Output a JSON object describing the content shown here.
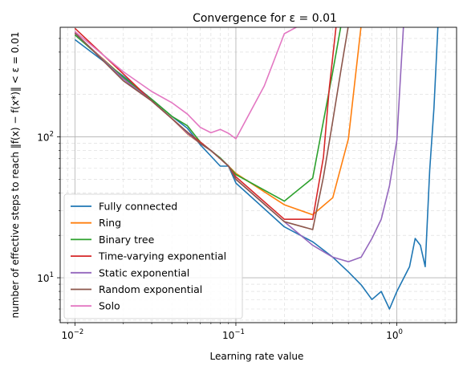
{
  "chart_data": {
    "type": "line",
    "title": "Convergence for ε =  0.01",
    "xlabel": "Learning rate value",
    "ylabel": "number of effective steps to reach ‖f(x) − f(x*)‖ < ε = 0.01",
    "xscale": "log",
    "yscale": "log",
    "xlim": [
      0.0081,
      2.35
    ],
    "ylim": [
      4.8,
      600
    ],
    "grid": true,
    "legend_position": "lower-left",
    "x_ticks": [
      {
        "value": 0.01,
        "base": "10",
        "exp": "−2"
      },
      {
        "value": 0.1,
        "base": "10",
        "exp": "−1"
      },
      {
        "value": 1,
        "base": "10",
        "exp": "0"
      }
    ],
    "y_ticks": [
      {
        "value": 10,
        "base": "10",
        "exp": "1"
      },
      {
        "value": 100,
        "base": "10",
        "exp": "2"
      }
    ],
    "series": [
      {
        "name": "Fully connected",
        "color": "#1f77b4",
        "points": [
          [
            0.01,
            490
          ],
          [
            0.02,
            270
          ],
          [
            0.03,
            185
          ],
          [
            0.04,
            140
          ],
          [
            0.05,
            115
          ],
          [
            0.06,
            88
          ],
          [
            0.07,
            73
          ],
          [
            0.08,
            62
          ],
          [
            0.09,
            62
          ],
          [
            0.1,
            47
          ],
          [
            0.2,
            23
          ],
          [
            0.3,
            18
          ],
          [
            0.4,
            14
          ],
          [
            0.5,
            11
          ],
          [
            0.6,
            8.9
          ],
          [
            0.7,
            7.0
          ],
          [
            0.8,
            8.0
          ],
          [
            0.9,
            6.0
          ],
          [
            1.0,
            8.0
          ],
          [
            1.2,
            12
          ],
          [
            1.3,
            19
          ],
          [
            1.4,
            17
          ],
          [
            1.5,
            12
          ],
          [
            1.6,
            58
          ],
          [
            1.7,
            160
          ],
          [
            1.8,
            620
          ]
        ]
      },
      {
        "name": "Ring",
        "color": "#ff7f0e",
        "points": [
          [
            0.01,
            540
          ],
          [
            0.02,
            265
          ],
          [
            0.03,
            180
          ],
          [
            0.04,
            135
          ],
          [
            0.05,
            105
          ],
          [
            0.06,
            90
          ],
          [
            0.07,
            80
          ],
          [
            0.08,
            70
          ],
          [
            0.09,
            62
          ],
          [
            0.1,
            55
          ],
          [
            0.2,
            33
          ],
          [
            0.3,
            28
          ],
          [
            0.4,
            37
          ],
          [
            0.5,
            97
          ],
          [
            0.6,
            620
          ]
        ]
      },
      {
        "name": "Binary tree",
        "color": "#2ca02c",
        "points": [
          [
            0.01,
            530
          ],
          [
            0.02,
            265
          ],
          [
            0.03,
            185
          ],
          [
            0.04,
            140
          ],
          [
            0.05,
            120
          ],
          [
            0.06,
            92
          ],
          [
            0.07,
            80
          ],
          [
            0.08,
            71
          ],
          [
            0.09,
            62
          ],
          [
            0.1,
            54
          ],
          [
            0.2,
            35
          ],
          [
            0.3,
            51
          ],
          [
            0.4,
            290
          ],
          [
            0.45,
            620
          ]
        ]
      },
      {
        "name": "Time-varying exponential",
        "color": "#d62728",
        "points": [
          [
            0.01,
            590
          ],
          [
            0.02,
            280
          ],
          [
            0.03,
            180
          ],
          [
            0.04,
            135
          ],
          [
            0.05,
            108
          ],
          [
            0.06,
            92
          ],
          [
            0.07,
            80
          ],
          [
            0.08,
            70
          ],
          [
            0.09,
            62
          ],
          [
            0.1,
            52
          ],
          [
            0.2,
            26
          ],
          [
            0.3,
            26
          ],
          [
            0.35,
            72
          ],
          [
            0.38,
            220
          ],
          [
            0.42,
            620
          ]
        ]
      },
      {
        "name": "Static exponential",
        "color": "#9467bd",
        "points": [
          [
            0.01,
            545
          ],
          [
            0.02,
            258
          ],
          [
            0.03,
            180
          ],
          [
            0.04,
            135
          ],
          [
            0.05,
            106
          ],
          [
            0.06,
            90
          ],
          [
            0.07,
            80
          ],
          [
            0.08,
            70
          ],
          [
            0.09,
            62
          ],
          [
            0.1,
            50
          ],
          [
            0.2,
            25
          ],
          [
            0.3,
            17
          ],
          [
            0.4,
            14
          ],
          [
            0.5,
            13
          ],
          [
            0.6,
            14
          ],
          [
            0.7,
            19
          ],
          [
            0.8,
            26
          ],
          [
            0.9,
            45
          ],
          [
            1.0,
            95
          ],
          [
            1.05,
            250
          ],
          [
            1.1,
            620
          ]
        ]
      },
      {
        "name": "Random exponential",
        "color": "#8c564b",
        "points": [
          [
            0.01,
            550
          ],
          [
            0.02,
            250
          ],
          [
            0.03,
            180
          ],
          [
            0.04,
            135
          ],
          [
            0.05,
            108
          ],
          [
            0.06,
            90
          ],
          [
            0.07,
            80
          ],
          [
            0.08,
            70
          ],
          [
            0.09,
            62
          ],
          [
            0.1,
            50
          ],
          [
            0.2,
            25
          ],
          [
            0.3,
            22
          ],
          [
            0.35,
            52
          ],
          [
            0.4,
            130
          ],
          [
            0.45,
            300
          ],
          [
            0.5,
            620
          ]
        ]
      },
      {
        "name": "Solo",
        "color": "#e377c2",
        "points": [
          [
            0.01,
            560
          ],
          [
            0.02,
            290
          ],
          [
            0.03,
            210
          ],
          [
            0.04,
            175
          ],
          [
            0.05,
            145
          ],
          [
            0.06,
            117
          ],
          [
            0.07,
            107
          ],
          [
            0.08,
            113
          ],
          [
            0.09,
            106
          ],
          [
            0.1,
            97
          ],
          [
            0.15,
            230
          ],
          [
            0.2,
            540
          ],
          [
            0.25,
            620
          ]
        ]
      }
    ]
  }
}
